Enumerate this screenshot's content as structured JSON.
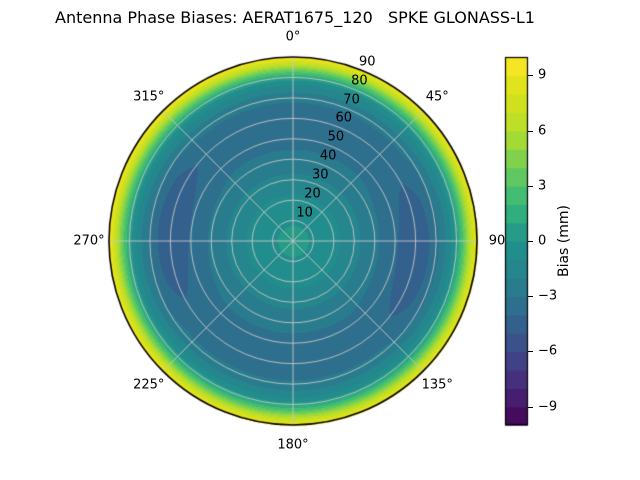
{
  "chart_data": {
    "type": "heatmap",
    "subtype": "polar-contour",
    "title": "Antenna Phase Biases: AERAT1675_120   SPKE GLONASS-L1",
    "theta_ticks": [
      {
        "label": "0°",
        "deg": 0
      },
      {
        "label": "45°",
        "deg": 45
      },
      {
        "label": "90",
        "deg": 90
      },
      {
        "label": "135°",
        "deg": 135
      },
      {
        "label": "180°",
        "deg": 180
      },
      {
        "label": "225°",
        "deg": 225
      },
      {
        "label": "270°",
        "deg": 270
      },
      {
        "label": "315°",
        "deg": 315
      }
    ],
    "radial_ticks": {
      "angle_deg": 22.5,
      "max": 90,
      "values": [
        10,
        20,
        30,
        40,
        50,
        60,
        70,
        80,
        90
      ]
    },
    "colorbar": {
      "label": "Bias (mm)",
      "vmin": -10,
      "vmax": 10,
      "levels": 20,
      "ticks": [
        {
          "label": "9",
          "value": 9
        },
        {
          "label": "6",
          "value": 6
        },
        {
          "label": "3",
          "value": 3
        },
        {
          "label": "0",
          "value": 0
        },
        {
          "label": "−3",
          "value": -3
        },
        {
          "label": "−6",
          "value": -6
        },
        {
          "label": "−9",
          "value": -9
        }
      ]
    },
    "colormap": {
      "name": "viridis",
      "stops": [
        "#440154",
        "#482878",
        "#3e4989",
        "#31688e",
        "#26828e",
        "#21918c",
        "#35b779",
        "#6ece58",
        "#b5de2b",
        "#d8e219",
        "#fde725"
      ]
    },
    "grid": {
      "on": true,
      "color": "#c8c8c8",
      "outline_color": "#000000",
      "theta_step_deg": 45,
      "r_step": 10
    },
    "bias_profile": {
      "zenith_deg": [
        0,
        10,
        20,
        30,
        40,
        50,
        60,
        65,
        70,
        75,
        78,
        80,
        83,
        86,
        88,
        90
      ],
      "bias_mm": [
        0.3,
        -0.1,
        -0.7,
        -1.7,
        -2.7,
        -3.3,
        -3.6,
        -3.4,
        -2.7,
        -1.5,
        -0.4,
        0.8,
        3.2,
        6.0,
        7.8,
        9.7
      ]
    },
    "azimuthal_modulation": {
      "amplitude_mm": -1.0,
      "cos_order": 2,
      "phase_deg": 95,
      "radial_center_deg": 60,
      "radial_sigma_deg": 14
    }
  }
}
